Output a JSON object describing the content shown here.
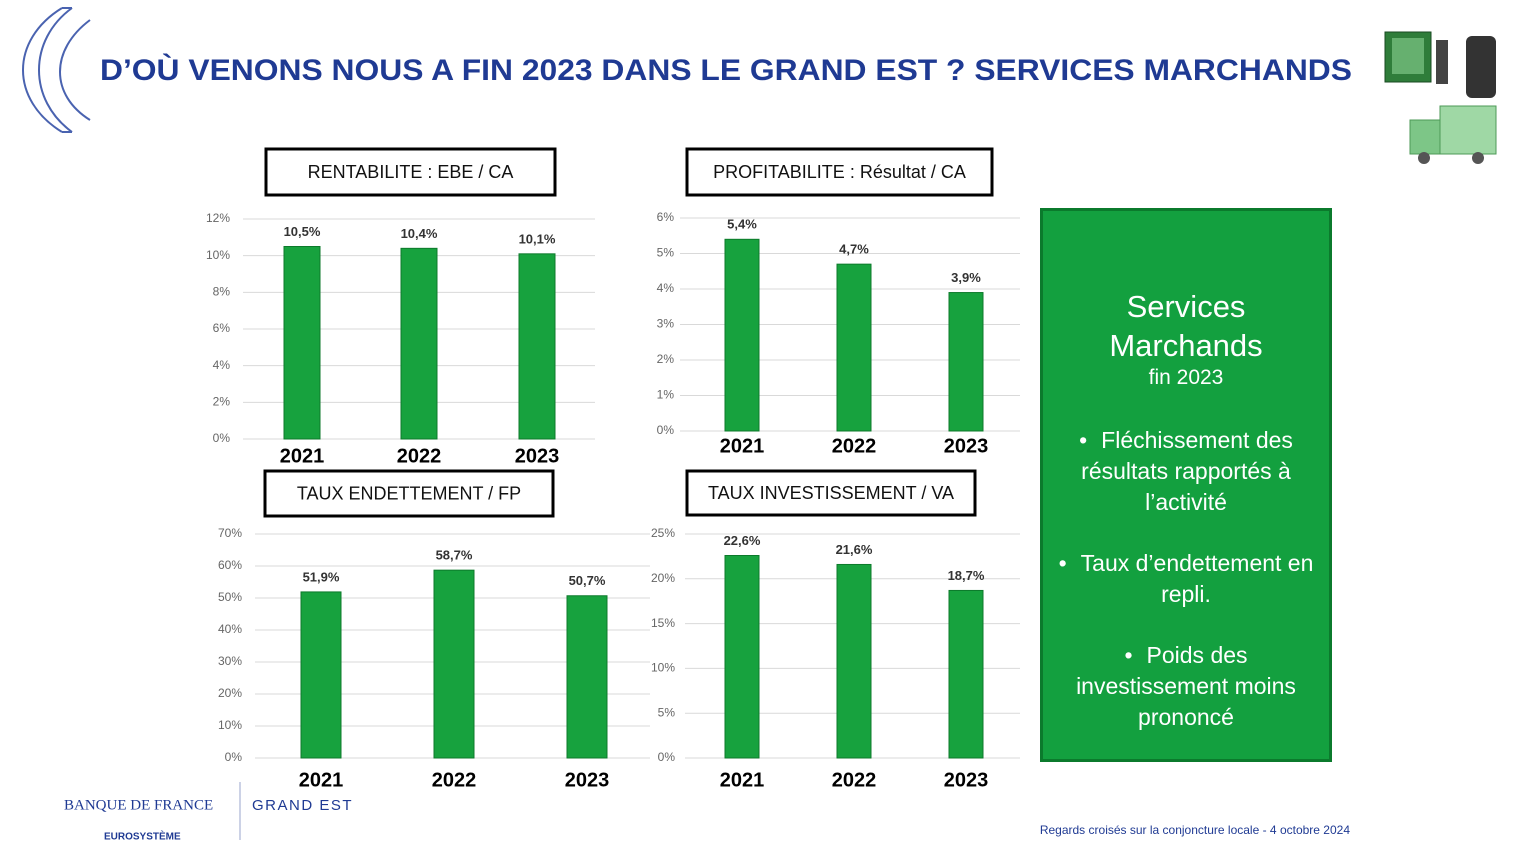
{
  "header": {
    "title": "D’OÙ VENONS NOUS A FIN 2023 DANS LE GRAND EST ? SERVICES MARCHANDS"
  },
  "chart_data": [
    {
      "type": "bar",
      "title": "RENTABILITE : EBE / CA",
      "categories": [
        "2021",
        "2022",
        "2023"
      ],
      "values": [
        10.5,
        10.4,
        10.1
      ],
      "value_labels": [
        "10,5%",
        "10,4%",
        "10,1%"
      ],
      "color": "#17a23e",
      "ylim": [
        0,
        12
      ],
      "yticks": [
        {
          "value": 0,
          "label": "0%"
        },
        {
          "value": 2,
          "label": "2%"
        },
        {
          "value": 4,
          "label": "4%"
        },
        {
          "value": 6,
          "label": "6%"
        },
        {
          "value": 8,
          "label": "8%"
        },
        {
          "value": 10,
          "label": "10%"
        },
        {
          "value": 12,
          "label": "12%"
        }
      ],
      "grid": true
    },
    {
      "type": "bar",
      "title": "PROFITABILITE : Résultat / CA",
      "categories": [
        "2021",
        "2022",
        "2023"
      ],
      "values": [
        5.4,
        4.7,
        3.9
      ],
      "value_labels": [
        "5,4%",
        "4,7%",
        "3,9%"
      ],
      "color": "#17a23e",
      "ylim": [
        0,
        6
      ],
      "yticks": [
        {
          "value": 0,
          "label": "0%"
        },
        {
          "value": 1,
          "label": "1%"
        },
        {
          "value": 2,
          "label": "2%"
        },
        {
          "value": 3,
          "label": "3%"
        },
        {
          "value": 4,
          "label": "4%"
        },
        {
          "value": 5,
          "label": "5%"
        },
        {
          "value": 6,
          "label": "6%"
        }
      ],
      "grid": true
    },
    {
      "type": "bar",
      "title": "TAUX ENDETTEMENT / FP",
      "categories": [
        "2021",
        "2022",
        "2023"
      ],
      "values": [
        51.9,
        58.7,
        50.7
      ],
      "value_labels": [
        "51,9%",
        "58,7%",
        "50,7%"
      ],
      "color": "#17a23e",
      "ylim": [
        0,
        70
      ],
      "yticks": [
        {
          "value": 0,
          "label": "0%"
        },
        {
          "value": 10,
          "label": "10%"
        },
        {
          "value": 20,
          "label": "20%"
        },
        {
          "value": 30,
          "label": "30%"
        },
        {
          "value": 40,
          "label": "40%"
        },
        {
          "value": 50,
          "label": "50%"
        },
        {
          "value": 60,
          "label": "60%"
        },
        {
          "value": 70,
          "label": "70%"
        }
      ],
      "grid": true
    },
    {
      "type": "bar",
      "title": "TAUX INVESTISSEMENT / VA",
      "categories": [
        "2021",
        "2022",
        "2023"
      ],
      "values": [
        22.6,
        21.6,
        18.7
      ],
      "value_labels": [
        "22,6%",
        "21,6%",
        "18,7%"
      ],
      "color": "#17a23e",
      "ylim": [
        0,
        25
      ],
      "yticks": [
        {
          "value": 0,
          "label": "0%"
        },
        {
          "value": 5,
          "label": "5%"
        },
        {
          "value": 10,
          "label": "10%"
        },
        {
          "value": 15,
          "label": "15%"
        },
        {
          "value": 20,
          "label": "20%"
        },
        {
          "value": 25,
          "label": "25%"
        }
      ],
      "grid": true
    }
  ],
  "summary": {
    "title": "Services Marchands",
    "subtitle": "fin 2023",
    "bullets": [
      "Fléchissement des résultats rapportés à l’activité",
      "Taux d’endettement en repli.",
      "Poids des investissement moins prononcé"
    ]
  },
  "footer": {
    "brand": "BANQUE DE FRANCE",
    "network": "EUROSYSTÈME",
    "region": "GRAND EST",
    "note": "Regards croisés sur la conjoncture locale - 4 octobre 2024"
  }
}
